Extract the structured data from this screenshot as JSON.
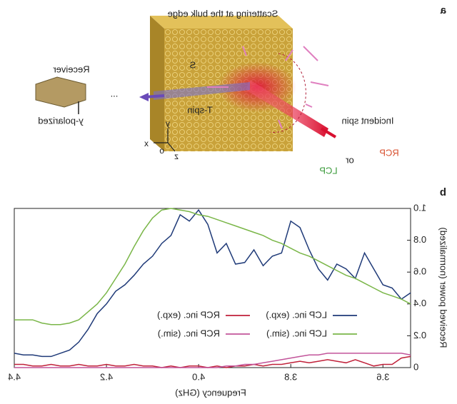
{
  "panel_a": {
    "label": "a",
    "title": "Scattering at the bulk edge",
    "receiver": "Receiver",
    "polarization": "y-polarized",
    "dots": "...",
    "incident": "Incident spin",
    "rcp": "RCP",
    "or": "or",
    "lcp": "LCP",
    "tspin": "T-spin",
    "s": "S",
    "ax_x": "x",
    "ax_y": "y",
    "ax_z": "z",
    "ax_o": "o"
  },
  "chart_data": {
    "type": "line",
    "panel_label": "b",
    "x_label": "Frequency (GHz)",
    "y_label": "Received power (normalized)",
    "xlim": [
      3.54,
      4.4
    ],
    "xticks": [
      3.6,
      3.8,
      {
        "value": 4,
        "label": "4.0"
      },
      4.2,
      4.4
    ],
    "ylim": [
      0,
      1
    ],
    "yticks": [
      0,
      0.2,
      0.4,
      0.6,
      0.8,
      {
        "value": 1,
        "label": "1.0"
      }
    ],
    "x": [
      3.54,
      3.56,
      3.58,
      3.6,
      3.62,
      3.64,
      3.66,
      3.68,
      3.7,
      3.72,
      3.74,
      3.76,
      3.78,
      3.8,
      3.82,
      3.84,
      3.86,
      3.88,
      3.9,
      3.92,
      3.94,
      3.96,
      3.98,
      4.0,
      4.02,
      4.04,
      4.06,
      4.08,
      4.1,
      4.12,
      4.14,
      4.16,
      4.18,
      4.2,
      4.22,
      4.24,
      4.26,
      4.28,
      4.3,
      4.32,
      4.34,
      4.36,
      4.38,
      4.4
    ],
    "series": [
      {
        "name": "LCP inc. (exp.)",
        "color": "#1f3a78",
        "values": [
          0.47,
          0.43,
          0.5,
          0.52,
          0.62,
          0.72,
          0.56,
          0.62,
          0.65,
          0.55,
          0.62,
          0.74,
          0.88,
          0.92,
          0.72,
          0.7,
          0.64,
          0.74,
          0.66,
          0.65,
          0.78,
          0.72,
          0.9,
          0.99,
          0.92,
          0.96,
          0.83,
          0.78,
          0.7,
          0.65,
          0.58,
          0.52,
          0.48,
          0.4,
          0.34,
          0.24,
          0.16,
          0.11,
          0.09,
          0.07,
          0.07,
          0.08,
          0.08,
          0.09
        ]
      },
      {
        "name": "RCP inc. (exp.)",
        "color": "#c0213a",
        "values": [
          0.07,
          0.06,
          0.02,
          0.02,
          0.01,
          0.03,
          0.05,
          0.03,
          0.04,
          0.05,
          0.04,
          0.03,
          0.04,
          0.03,
          0.02,
          0.02,
          0.01,
          0.02,
          0.01,
          0.01,
          0,
          0.01,
          0,
          0.01,
          0.01,
          0,
          0.01,
          0,
          0.01,
          0.01,
          0.02,
          0.01,
          0.01,
          0.02,
          0.01,
          0.01,
          0.02,
          0.01,
          0.01,
          0.02,
          0.01,
          0.01,
          0.02,
          0.02
        ]
      },
      {
        "name": "LCP inc. (sim.)",
        "color": "#7ab648",
        "values": [
          0.4,
          0.43,
          0.45,
          0.47,
          0.5,
          0.53,
          0.56,
          0.58,
          0.61,
          0.64,
          0.67,
          0.7,
          0.72,
          0.75,
          0.78,
          0.8,
          0.83,
          0.85,
          0.87,
          0.89,
          0.91,
          0.93,
          0.95,
          0.96,
          0.98,
          0.99,
          1,
          0.99,
          0.94,
          0.86,
          0.76,
          0.65,
          0.56,
          0.47,
          0.4,
          0.35,
          0.3,
          0.28,
          0.27,
          0.27,
          0.28,
          0.3,
          0.3,
          0.3
        ]
      },
      {
        "name": "RCP inc. (sim.)",
        "color": "#c2549a",
        "values": [
          0.08,
          0.09,
          0.09,
          0.09,
          0.09,
          0.09,
          0.09,
          0.09,
          0.09,
          0.09,
          0.08,
          0.08,
          0.07,
          0.06,
          0.05,
          0.04,
          0.03,
          0.02,
          0.02,
          0.01,
          0.01,
          0,
          0,
          0,
          0,
          0,
          0,
          0,
          0,
          0,
          0,
          0,
          0,
          0,
          0,
          0,
          0,
          0,
          0,
          0,
          0,
          0,
          0,
          0
        ]
      }
    ]
  }
}
